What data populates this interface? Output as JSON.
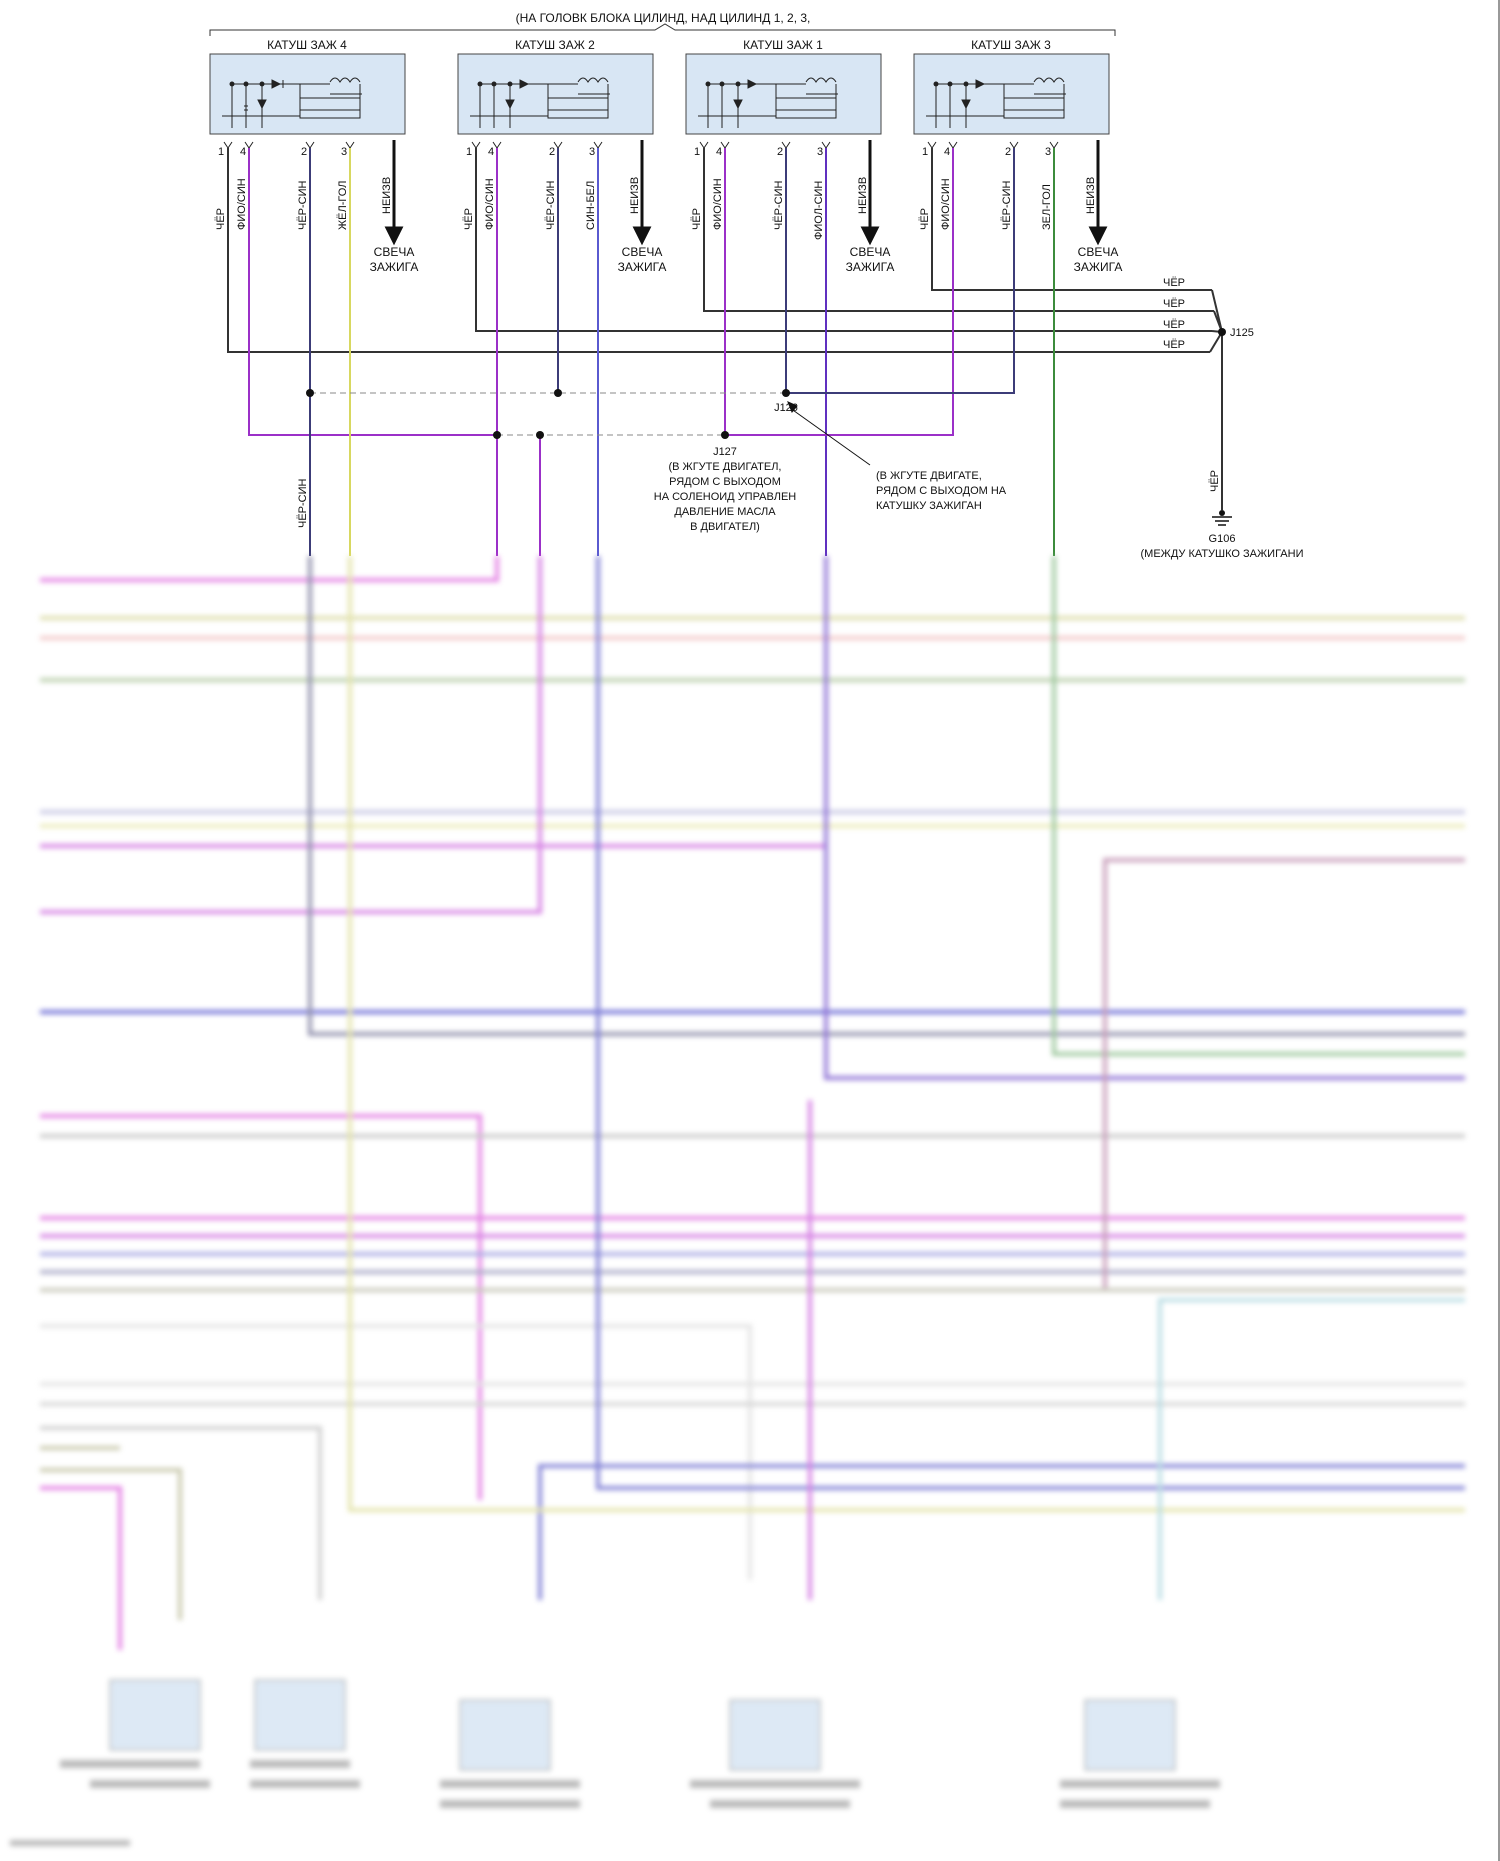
{
  "header": {
    "location_note": "(НА ГОЛОВК БЛОКА ЦИЛИНД, НАД ЦИЛИНД 1, 2, 3,"
  },
  "coils": [
    {
      "title": "КАТУШ ЗАЖ 4",
      "pins": [
        "1",
        "4",
        "2",
        "3"
      ],
      "wires": [
        "ЧЁР",
        "ФИО/СИН",
        "ЧЁР-СИН",
        "ЖЁЛ-ГОЛ"
      ],
      "out": "НЕИЗВ",
      "plug": "СВЕЧА ЗАЖИГА"
    },
    {
      "title": "КАТУШ ЗАЖ 2",
      "pins": [
        "1",
        "4",
        "2",
        "3"
      ],
      "wires": [
        "ЧЁР",
        "ФИО/СИН",
        "ЧЁР-СИН",
        "СИН-БЕЛ"
      ],
      "out": "НЕИЗВ",
      "plug": "СВЕЧА ЗАЖИГА"
    },
    {
      "title": "КАТУШ ЗАЖ 1",
      "pins": [
        "1",
        "4",
        "2",
        "3"
      ],
      "wires": [
        "ЧЁР",
        "ФИО/СИН",
        "ЧЁР-СИН",
        "ФИОЛ-СИН"
      ],
      "out": "НЕИЗВ",
      "plug": "СВЕЧА ЗАЖИГА"
    },
    {
      "title": "КАТУШ ЗАЖ 3",
      "pins": [
        "1",
        "4",
        "2",
        "3"
      ],
      "wires": [
        "ЧЁР",
        "ФИО/СИН",
        "ЧЁР-СИН",
        "ЗЕЛ-ГОЛ"
      ],
      "out": "НЕИЗВ",
      "plug": "СВЕЧА ЗАЖИГА"
    }
  ],
  "ground_bus": {
    "wire_labels": [
      "ЧЁР",
      "ЧЁР",
      "ЧЁР",
      "ЧЁР"
    ],
    "splice": "J125",
    "down_wire": "ЧЁР",
    "ground": "G106",
    "ground_note": "(МЕЖДУ КАТУШКО ЗАЖИГАНИ"
  },
  "splices": {
    "j126": {
      "name": "J126",
      "note": [
        "(В ЖГУТЕ ДВИГАТЕ,",
        "РЯДОМ С ВЫХОДОМ НА",
        "КАТУШКУ ЗАЖИГАН"
      ]
    },
    "j127": {
      "name": "J127",
      "note": [
        "(В ЖГУТЕ ДВИГАТЕЛ,",
        "РЯДОМ С ВЫХОДОМ",
        "НА СОЛЕНОИД УПРАВЛЕН",
        "ДАВЛЕНИЕ МАСЛА",
        "В ДВИГАТЕЛ)"
      ]
    }
  },
  "vertical_wire": "ЧЁР-СИН",
  "colors": {
    "black": "#333333",
    "violet": "#9b30c8",
    "blk_blue": "#3c3c78",
    "yel_blue": "#d8d860",
    "blue_white": "#5a5ad0",
    "vio_blue": "#6030c0",
    "grn_blue": "#3c8c3c",
    "pink": "#e070e0",
    "box_fill": "#d8e6f4",
    "box_stroke": "#444444"
  }
}
